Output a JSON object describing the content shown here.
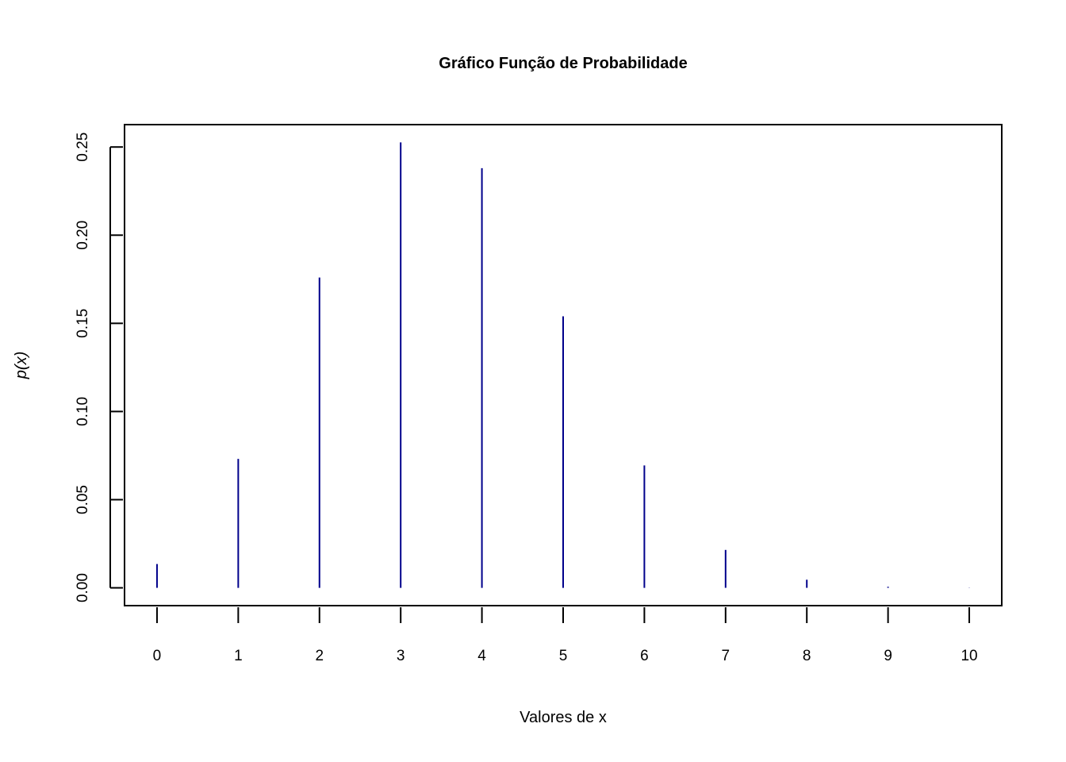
{
  "chart_data": {
    "type": "bar",
    "style": "vertical-lines",
    "title": "Gráfico Função de Probabilidade",
    "xlabel": "Valores de x",
    "ylabel": "p(x)",
    "categories": [
      "0",
      "1",
      "2",
      "3",
      "4",
      "5",
      "6",
      "7",
      "8",
      "9",
      "10"
    ],
    "x": [
      0,
      1,
      2,
      3,
      4,
      5,
      6,
      7,
      8,
      9,
      10
    ],
    "values": [
      0.0135,
      0.0731,
      0.176,
      0.2526,
      0.238,
      0.154,
      0.0694,
      0.0215,
      0.0046,
      0.0006,
      0.0001
    ],
    "xlim": [
      -0.4,
      10.4
    ],
    "ylim": [
      -0.0101,
      0.2627
    ],
    "yticks": [
      0.0,
      0.05,
      0.1,
      0.15,
      0.2,
      0.25
    ],
    "ytick_labels": [
      "0.00",
      "0.05",
      "0.10",
      "0.15",
      "0.20",
      "0.25"
    ],
    "xtick_labels": [
      "0",
      "1",
      "2",
      "3",
      "4",
      "5",
      "6",
      "7",
      "8",
      "9",
      "10"
    ],
    "grid": false,
    "legend": "none",
    "line_color": "#00008B",
    "axis_color": "#000000"
  }
}
